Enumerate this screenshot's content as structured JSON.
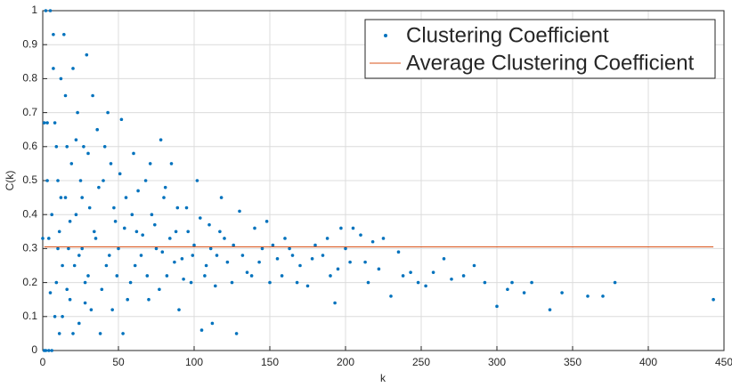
{
  "chart_data": {
    "type": "scatter",
    "xlabel": "k",
    "ylabel": "C(k)",
    "xlim": [
      0,
      450
    ],
    "ylim": [
      0,
      1
    ],
    "xticks": [
      0,
      50,
      100,
      150,
      200,
      250,
      300,
      350,
      400,
      450
    ],
    "yticks": [
      0,
      0.1,
      0.2,
      0.3,
      0.4,
      0.5,
      0.6,
      0.7,
      0.8,
      0.9,
      1
    ],
    "grid": true,
    "legend": "upper right",
    "series": [
      {
        "name": "Clustering Coefficient",
        "color": "#0072bd",
        "kind": "scatter",
        "x": [
          443,
          378,
          370,
          360,
          343,
          335,
          323,
          318,
          310,
          307,
          300,
          292,
          285,
          278,
          270,
          265,
          258,
          253,
          248,
          243,
          238,
          235,
          230,
          225,
          222,
          215,
          210,
          205,
          200,
          197,
          195,
          190,
          185,
          180,
          175,
          170,
          165,
          160,
          155,
          150,
          148,
          145,
          140,
          135,
          130,
          128,
          125,
          120,
          118,
          115,
          112,
          110,
          108,
          105,
          102,
          100,
          98,
          95,
          92,
          90,
          88,
          85,
          82,
          80,
          78,
          75,
          72,
          70,
          68,
          65,
          62,
          60,
          58,
          55,
          53,
          52,
          50,
          48,
          46,
          45,
          43,
          42,
          40,
          38,
          36,
          35,
          33,
          31,
          30,
          29,
          28,
          27,
          26,
          25,
          24,
          23,
          22,
          21,
          20,
          19,
          18,
          17,
          16,
          15,
          14,
          13,
          12,
          11,
          10,
          9,
          8,
          7,
          6,
          5,
          4,
          3,
          2,
          2,
          3,
          4,
          5,
          6,
          7,
          8,
          9,
          10,
          11,
          12,
          13,
          15,
          16,
          18,
          20,
          22,
          24,
          26,
          28,
          30,
          32,
          34,
          37,
          39,
          41,
          44,
          47,
          49,
          51,
          54,
          56,
          59,
          61,
          63,
          66,
          69,
          71,
          74,
          77,
          79,
          81,
          84,
          87,
          89,
          93,
          96,
          99,
          104,
          107,
          111,
          114,
          117,
          122,
          126,
          132,
          138,
          143,
          152,
          158,
          163,
          168,
          178,
          188,
          193,
          203,
          213,
          218,
          0,
          1,
          1
        ],
        "values": [
          0.15,
          0.2,
          0.16,
          0.16,
          0.17,
          0.12,
          0.2,
          0.17,
          0.2,
          0.18,
          0.13,
          0.2,
          0.25,
          0.22,
          0.21,
          0.27,
          0.23,
          0.19,
          0.2,
          0.23,
          0.22,
          0.29,
          0.16,
          0.33,
          0.24,
          0.2,
          0.34,
          0.36,
          0.3,
          0.36,
          0.24,
          0.22,
          0.28,
          0.31,
          0.19,
          0.25,
          0.28,
          0.33,
          0.27,
          0.2,
          0.38,
          0.3,
          0.36,
          0.23,
          0.41,
          0.05,
          0.2,
          0.33,
          0.45,
          0.28,
          0.08,
          0.37,
          0.25,
          0.06,
          0.5,
          0.31,
          0.2,
          0.42,
          0.27,
          0.12,
          0.35,
          0.55,
          0.22,
          0.45,
          0.62,
          0.3,
          0.4,
          0.15,
          0.5,
          0.28,
          0.35,
          0.58,
          0.2,
          0.45,
          0.05,
          0.68,
          0.3,
          0.38,
          0.12,
          0.55,
          0.7,
          0.25,
          0.5,
          0.05,
          0.65,
          0.33,
          0.75,
          0.42,
          0.22,
          0.87,
          0.14,
          0.6,
          0.3,
          0.5,
          0.08,
          0.7,
          0.4,
          0.25,
          0.83,
          0.55,
          0.15,
          0.3,
          0.6,
          0.45,
          0.93,
          0.1,
          0.8,
          0.35,
          0.5,
          0.2,
          0.67,
          0.93,
          0.4,
          1,
          0.33,
          0.67,
          1,
          0,
          0.5,
          0,
          0.17,
          0,
          0.83,
          0.1,
          0.6,
          0.3,
          0.05,
          0.45,
          0.25,
          0.75,
          0.18,
          0.38,
          0.05,
          0.62,
          0.28,
          0.45,
          0.2,
          0.58,
          0.12,
          0.35,
          0.48,
          0.18,
          0.6,
          0.28,
          0.42,
          0.22,
          0.52,
          0.36,
          0.15,
          0.4,
          0.25,
          0.47,
          0.34,
          0.22,
          0.55,
          0.37,
          0.18,
          0.29,
          0.48,
          0.33,
          0.26,
          0.42,
          0.21,
          0.35,
          0.28,
          0.39,
          0.22,
          0.3,
          0.19,
          0.35,
          0.26,
          0.31,
          0.28,
          0.22,
          0.26,
          0.31,
          0.22,
          0.3,
          0.2,
          0.27,
          0.33,
          0.14,
          0.26,
          0.26,
          0.32,
          0.33,
          0.67,
          0
        ]
      },
      {
        "name": "Average Clustering Coefficient",
        "color": "#d95319",
        "kind": "line",
        "x": [
          1,
          443
        ],
        "values": [
          0.305,
          0.305
        ]
      }
    ]
  }
}
